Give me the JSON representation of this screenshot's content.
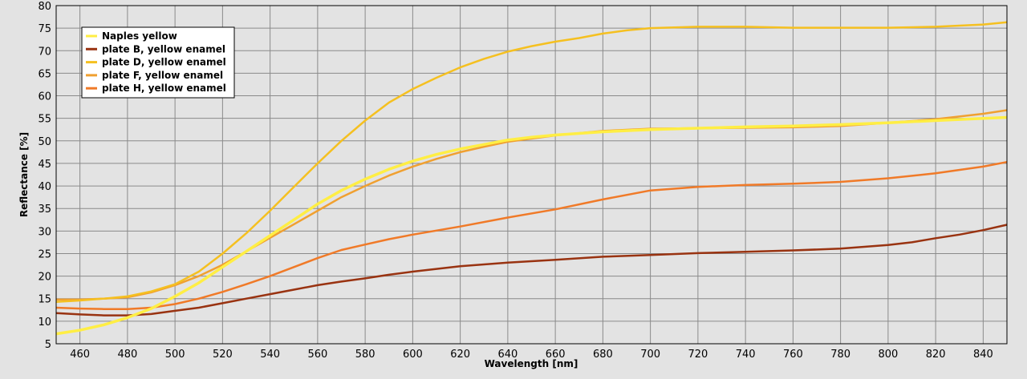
{
  "chart_data": {
    "type": "line",
    "xlabel": "Wavelength [nm]",
    "ylabel": "Reflectance [%]",
    "xlim": [
      450,
      850
    ],
    "ylim": [
      5,
      80
    ],
    "xticks": [
      460,
      480,
      500,
      520,
      540,
      560,
      580,
      600,
      620,
      640,
      660,
      680,
      700,
      720,
      740,
      760,
      780,
      800,
      820,
      840
    ],
    "yticks": [
      5,
      10,
      15,
      20,
      25,
      30,
      35,
      40,
      45,
      50,
      55,
      60,
      65,
      70,
      75,
      80
    ],
    "grid": true,
    "legend_position": "top-left",
    "colors": {
      "background": "#e3e3e3",
      "grid": "#8a8a8a",
      "border": "#000000"
    },
    "series": [
      {
        "name": "Naples yellow",
        "color": "#ffee44",
        "x": [
          450,
          460,
          470,
          480,
          490,
          500,
          510,
          520,
          530,
          540,
          550,
          560,
          570,
          580,
          590,
          600,
          610,
          620,
          630,
          640,
          650,
          660,
          680,
          700,
          720,
          740,
          760,
          780,
          800,
          820,
          840,
          850
        ],
        "y": [
          7.2,
          8.0,
          9.2,
          10.8,
          12.8,
          15.5,
          18.5,
          22.0,
          25.5,
          29.0,
          32.5,
          36.0,
          39.0,
          41.5,
          43.7,
          45.5,
          47.0,
          48.2,
          49.2,
          50.2,
          50.8,
          51.3,
          52.0,
          52.5,
          52.8,
          53.1,
          53.3,
          53.6,
          54.0,
          54.5,
          55.0,
          55.2
        ]
      },
      {
        "name": "plate B, yellow enamel",
        "color": "#993311",
        "x": [
          450,
          460,
          470,
          480,
          490,
          500,
          510,
          520,
          530,
          540,
          550,
          560,
          570,
          580,
          590,
          600,
          620,
          640,
          660,
          680,
          700,
          720,
          740,
          760,
          780,
          800,
          810,
          820,
          830,
          840,
          850
        ],
        "y": [
          11.8,
          11.5,
          11.3,
          11.3,
          11.6,
          12.3,
          13.0,
          14.0,
          15.0,
          16.0,
          17.0,
          18.0,
          18.8,
          19.5,
          20.3,
          21.0,
          22.2,
          23.0,
          23.6,
          24.3,
          24.7,
          25.1,
          25.4,
          25.7,
          26.1,
          26.9,
          27.5,
          28.4,
          29.2,
          30.2,
          31.4
        ]
      },
      {
        "name": "plate D, yellow enamel",
        "color": "#f5c020",
        "x": [
          450,
          460,
          470,
          480,
          490,
          500,
          510,
          520,
          530,
          540,
          550,
          560,
          570,
          580,
          590,
          600,
          610,
          620,
          630,
          640,
          650,
          660,
          670,
          680,
          690,
          700,
          720,
          740,
          760,
          780,
          800,
          820,
          840,
          850
        ],
        "y": [
          14.3,
          14.6,
          15.0,
          15.5,
          16.6,
          18.2,
          21.0,
          25.0,
          29.5,
          34.5,
          39.8,
          45.0,
          50.0,
          54.5,
          58.5,
          61.5,
          64.0,
          66.3,
          68.2,
          69.8,
          71.0,
          72.0,
          72.8,
          73.8,
          74.5,
          75.0,
          75.3,
          75.3,
          75.1,
          75.1,
          75.1,
          75.3,
          75.8,
          76.3
        ]
      },
      {
        "name": "plate F, yellow enamel",
        "color": "#f0a030",
        "x": [
          450,
          460,
          470,
          480,
          490,
          500,
          510,
          520,
          530,
          540,
          550,
          560,
          570,
          580,
          590,
          600,
          610,
          620,
          630,
          640,
          660,
          680,
          700,
          720,
          740,
          760,
          780,
          800,
          820,
          840,
          850
        ],
        "y": [
          14.8,
          14.8,
          15.0,
          15.3,
          16.4,
          18.0,
          20.0,
          22.5,
          25.5,
          28.5,
          31.5,
          34.5,
          37.5,
          40.0,
          42.3,
          44.3,
          46.0,
          47.5,
          48.7,
          49.8,
          51.2,
          52.2,
          52.7,
          52.8,
          52.9,
          53.0,
          53.3,
          54.0,
          54.8,
          56.0,
          56.8
        ]
      },
      {
        "name": "plate H, yellow enamel",
        "color": "#f07a28",
        "x": [
          450,
          460,
          470,
          480,
          490,
          500,
          510,
          520,
          530,
          540,
          550,
          560,
          570,
          580,
          590,
          600,
          620,
          640,
          660,
          680,
          700,
          720,
          740,
          760,
          780,
          800,
          820,
          840,
          850
        ],
        "y": [
          13.0,
          12.8,
          12.7,
          12.7,
          13.0,
          13.8,
          15.0,
          16.5,
          18.2,
          20.0,
          22.0,
          24.0,
          25.8,
          27.0,
          28.2,
          29.2,
          31.0,
          33.0,
          34.8,
          37.0,
          39.0,
          39.8,
          40.2,
          40.5,
          40.9,
          41.7,
          42.8,
          44.3,
          45.3
        ]
      }
    ]
  }
}
